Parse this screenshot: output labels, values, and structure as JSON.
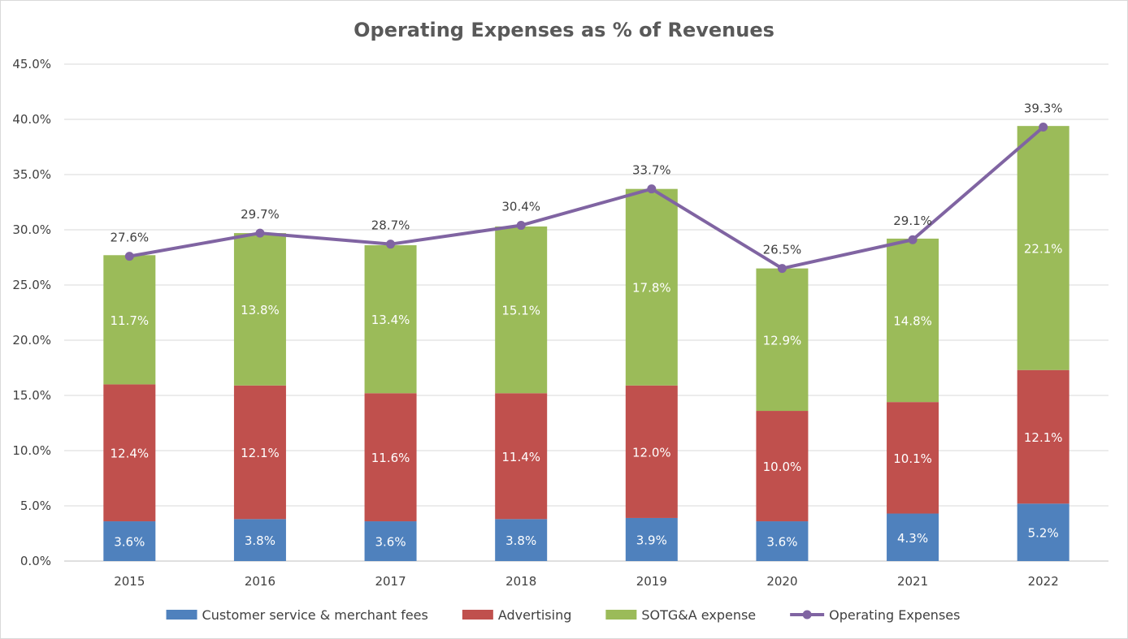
{
  "chart_data": {
    "type": "bar",
    "stacked": true,
    "title": "Operating Expenses as % of Revenues",
    "categories": [
      "2015",
      "2016",
      "2017",
      "2018",
      "2019",
      "2020",
      "2021",
      "2022"
    ],
    "ylim": [
      0,
      45
    ],
    "y_ticks": [
      "0.0%",
      "5.0%",
      "10.0%",
      "15.0%",
      "20.0%",
      "25.0%",
      "30.0%",
      "35.0%",
      "40.0%",
      "45.0%"
    ],
    "grid": true,
    "legend_position": "bottom",
    "series": [
      {
        "name": "Customer service & merchant fees",
        "type": "bar",
        "color": "#4f81bd",
        "values": [
          3.6,
          3.8,
          3.6,
          3.8,
          3.9,
          3.6,
          4.3,
          5.2
        ],
        "labels": [
          "3.6%",
          "3.8%",
          "3.6%",
          "3.8%",
          "3.9%",
          "3.6%",
          "4.3%",
          "5.2%"
        ]
      },
      {
        "name": "Advertising",
        "type": "bar",
        "color": "#c0504d",
        "values": [
          12.4,
          12.1,
          11.6,
          11.4,
          12.0,
          10.0,
          10.1,
          12.1
        ],
        "labels": [
          "12.4%",
          "12.1%",
          "11.6%",
          "11.4%",
          "12.0%",
          "10.0%",
          "10.1%",
          "12.1%"
        ]
      },
      {
        "name": "SOTG&A expense",
        "type": "bar",
        "color": "#9bbb59",
        "values": [
          11.7,
          13.8,
          13.4,
          15.1,
          17.8,
          12.9,
          14.8,
          22.1
        ],
        "labels": [
          "11.7%",
          "13.8%",
          "13.4%",
          "15.1%",
          "17.8%",
          "12.9%",
          "14.8%",
          "22.1%"
        ]
      },
      {
        "name": "Operating Expenses",
        "type": "line",
        "color": "#8064a2",
        "values": [
          27.6,
          29.7,
          28.7,
          30.4,
          33.7,
          26.5,
          29.1,
          39.3
        ],
        "labels": [
          "27.6%",
          "29.7%",
          "28.7%",
          "30.4%",
          "33.7%",
          "26.5%",
          "29.1%",
          "39.3%"
        ]
      }
    ]
  }
}
